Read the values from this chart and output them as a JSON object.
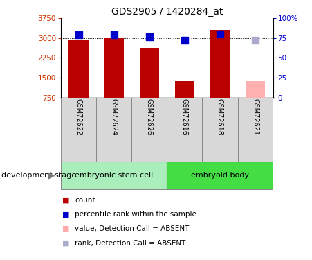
{
  "title": "GDS2905 / 1420284_at",
  "samples": [
    "GSM72622",
    "GSM72624",
    "GSM72626",
    "GSM72616",
    "GSM72618",
    "GSM72621"
  ],
  "bar_values": [
    2940,
    2990,
    2620,
    1380,
    3310,
    1380
  ],
  "bar_colors": [
    "#bb0000",
    "#bb0000",
    "#bb0000",
    "#bb0000",
    "#bb0000",
    "#ffb0b0"
  ],
  "rank_values": [
    79,
    79,
    77,
    72,
    80,
    72
  ],
  "rank_colors": [
    "#0000cc",
    "#0000cc",
    "#0000cc",
    "#0000cc",
    "#0000cc",
    "#aaaacc"
  ],
  "ylim_left": [
    750,
    3750
  ],
  "ylim_right": [
    0,
    100
  ],
  "yticks_left": [
    750,
    1500,
    2250,
    3000,
    3750
  ],
  "yticks_right": [
    0,
    25,
    50,
    75,
    100
  ],
  "ytick_labels_right": [
    "0",
    "25",
    "50",
    "75",
    "100%"
  ],
  "gridlines": [
    1500,
    2250,
    3000
  ],
  "group_labels": [
    "embryonic stem cell",
    "embryoid body"
  ],
  "group_colors": [
    "#aaeebb",
    "#44dd44"
  ],
  "category_label": "development stage",
  "legend_items": [
    {
      "label": "count",
      "color": "#bb0000"
    },
    {
      "label": "percentile rank within the sample",
      "color": "#0000cc"
    },
    {
      "label": "value, Detection Call = ABSENT",
      "color": "#ffaaaa"
    },
    {
      "label": "rank, Detection Call = ABSENT",
      "color": "#aaaacc"
    }
  ],
  "bar_width": 0.55,
  "marker_size": 55,
  "left_color": "#cc3300",
  "right_color": "#0000cc",
  "label_fontsize": 7,
  "tick_fontsize": 7.5,
  "title_fontsize": 10
}
